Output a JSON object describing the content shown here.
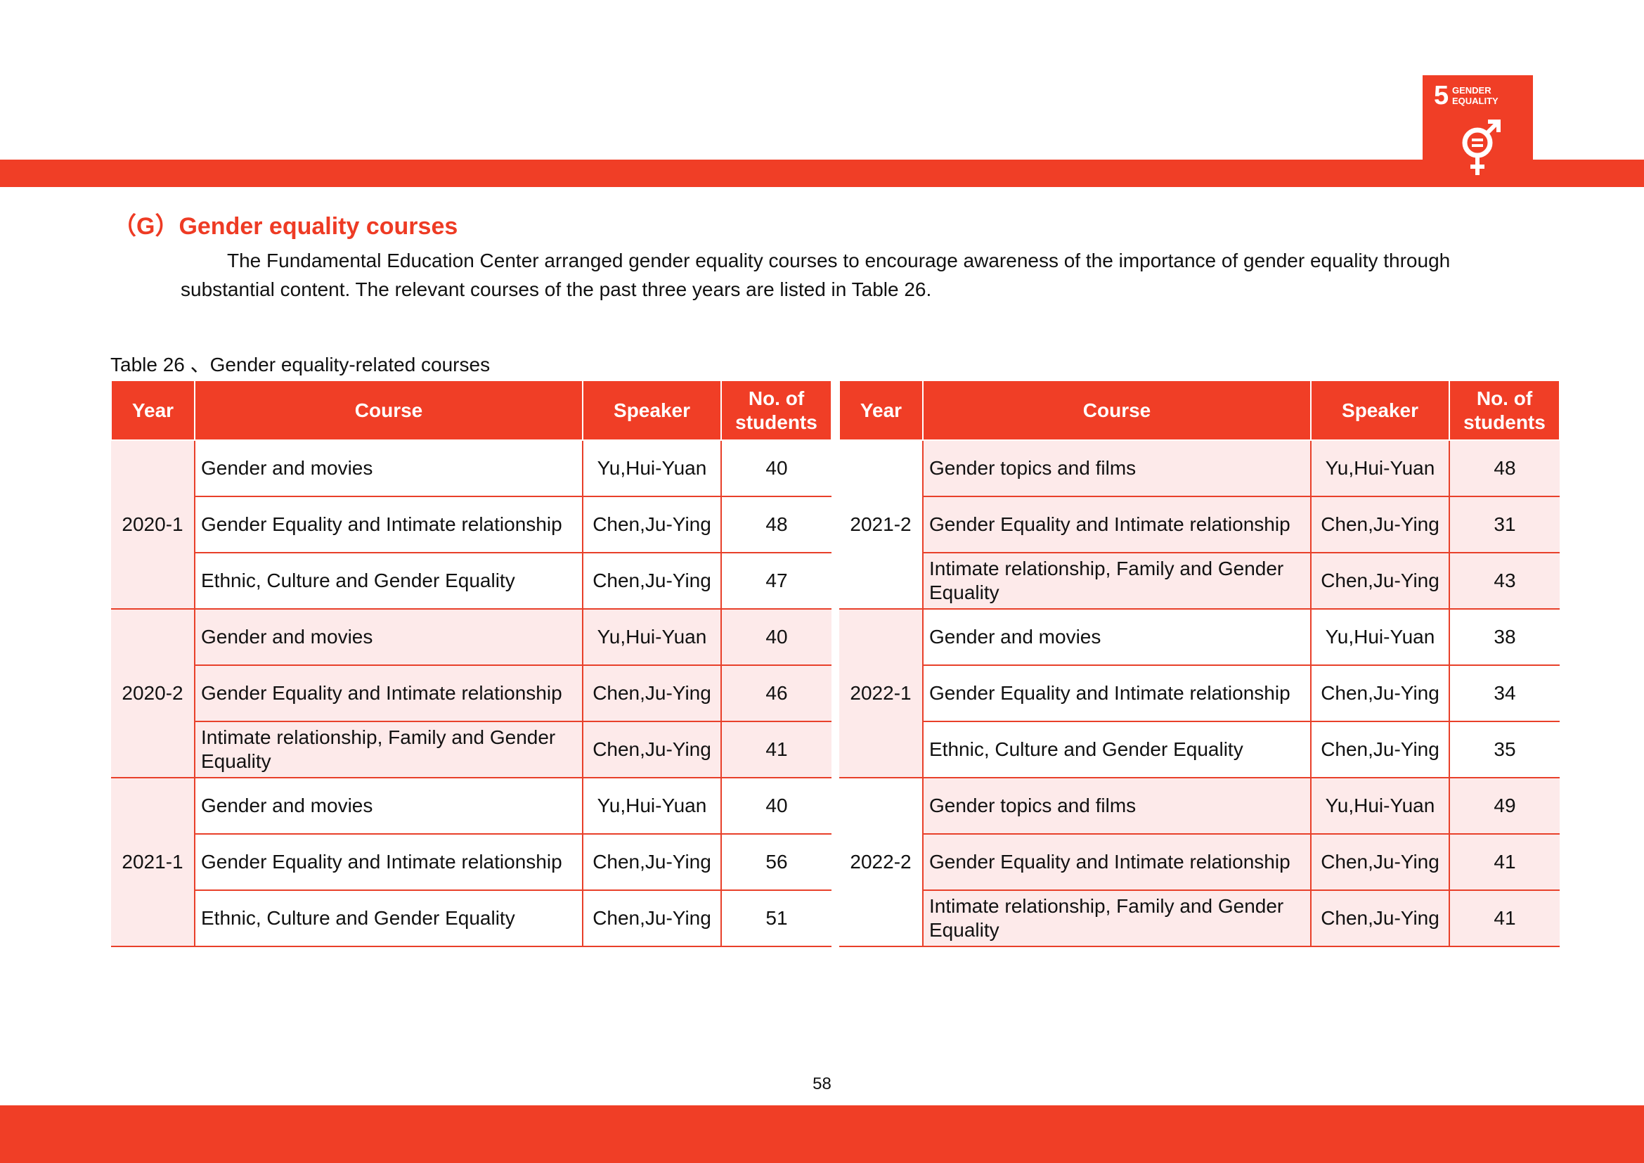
{
  "badge": {
    "number": "5",
    "label_line1": "GENDER",
    "label_line2": "EQUALITY"
  },
  "section_title": "（G）Gender equality courses",
  "paragraph": "The Fundamental Education Center arranged gender equality courses to encourage awareness of the importance of gender equality through substantial content. The relevant courses of the past three years are listed in Table 26.",
  "table_caption": "Table 26 、Gender equality-related courses",
  "tables": [
    {
      "header": [
        "Year",
        "Course",
        "Speaker",
        "No. of students"
      ],
      "groups": [
        {
          "year": "2020-1",
          "rows": [
            [
              "Gender and movies",
              "Yu,Hui-Yuan",
              40
            ],
            [
              "Gender Equality and Intimate relationship",
              "Chen,Ju-Ying",
              48
            ],
            [
              "Ethnic, Culture and Gender Equality",
              "Chen,Ju-Ying",
              47
            ]
          ]
        },
        {
          "year": "2020-2",
          "rows": [
            [
              "Gender and movies",
              "Yu,Hui-Yuan",
              40
            ],
            [
              "Gender Equality and Intimate relationship",
              "Chen,Ju-Ying",
              46
            ],
            [
              "Intimate relationship, Family and Gender Equality",
              "Chen,Ju-Ying",
              41
            ]
          ]
        },
        {
          "year": "2021-1",
          "rows": [
            [
              "Gender and movies",
              "Yu,Hui-Yuan",
              40
            ],
            [
              "Gender Equality and Intimate relationship",
              "Chen,Ju-Ying",
              56
            ],
            [
              "Ethnic, Culture and Gender Equality",
              "Chen,Ju-Ying",
              51
            ]
          ]
        }
      ]
    },
    {
      "header": [
        "Year",
        "Course",
        "Speaker",
        "No. of students"
      ],
      "groups": [
        {
          "year": "2021-2",
          "rows": [
            [
              "Gender topics and films",
              "Yu,Hui-Yuan",
              48
            ],
            [
              "Gender Equality and Intimate relationship",
              "Chen,Ju-Ying",
              31
            ],
            [
              "Intimate relationship, Family and Gender Equality",
              "Chen,Ju-Ying",
              43
            ]
          ]
        },
        {
          "year": "2022-1",
          "rows": [
            [
              "Gender and movies",
              "Yu,Hui-Yuan",
              38
            ],
            [
              "Gender Equality and Intimate relationship",
              "Chen,Ju-Ying",
              34
            ],
            [
              "Ethnic, Culture and Gender Equality",
              "Chen,Ju-Ying",
              35
            ]
          ]
        },
        {
          "year": "2022-2",
          "rows": [
            [
              "Gender topics and films",
              "Yu,Hui-Yuan",
              49
            ],
            [
              "Gender Equality and Intimate relationship",
              "Chen,Ju-Ying",
              41
            ],
            [
              "Intimate relationship, Family and Gender Equality",
              "Chen,Ju-Ying",
              41
            ]
          ]
        }
      ]
    }
  ],
  "page_number": "58"
}
